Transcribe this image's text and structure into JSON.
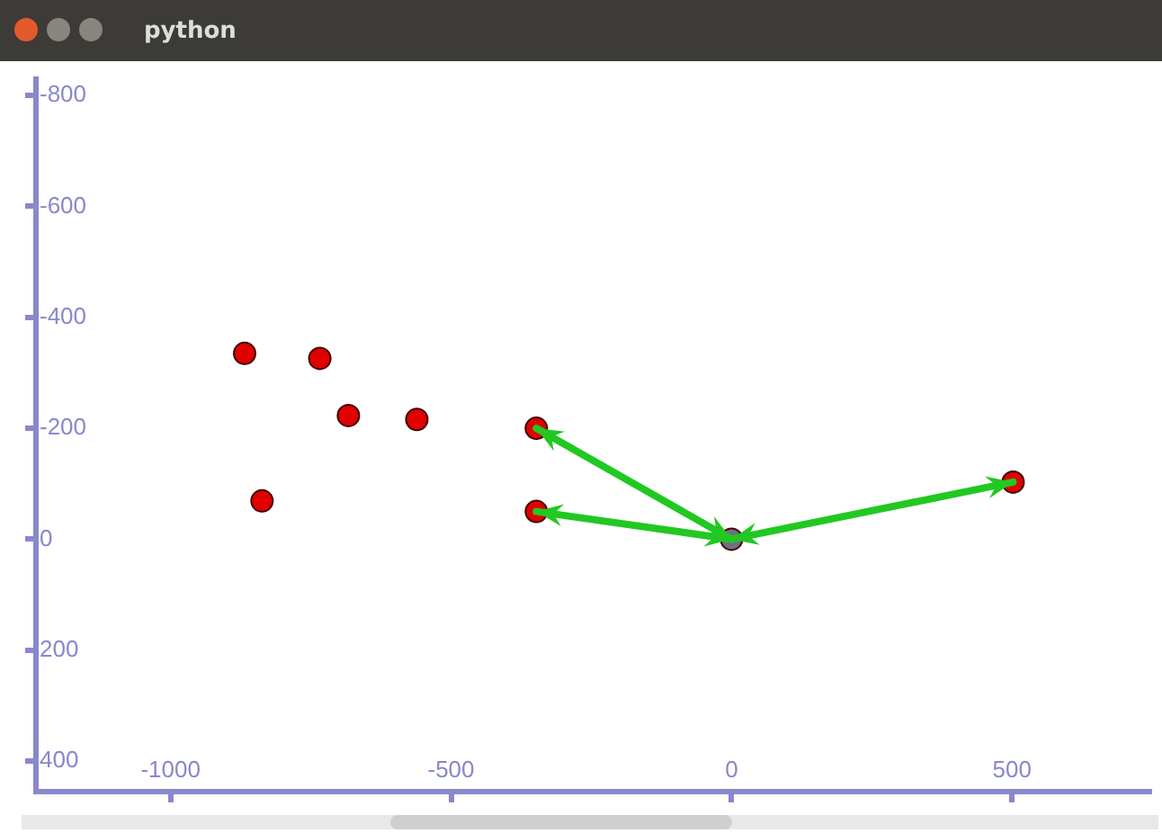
{
  "chart_data": {
    "type": "scatter",
    "title": "python",
    "xlim": [
      -1240,
      745
    ],
    "ylim": [
      455,
      -830
    ],
    "xticks": [
      -1000,
      -500,
      0,
      500
    ],
    "yticks": [
      -800,
      -600,
      -400,
      -200,
      0,
      200,
      400
    ],
    "grid": false,
    "marker": "circle",
    "legend": false,
    "series": [
      {
        "color": "#e00000",
        "x": [
          -868,
          -734,
          -683,
          -561,
          -348,
          -837,
          -348,
          502
        ],
        "values": [
          -335,
          -326,
          -223,
          -216,
          -200,
          -69,
          -50,
          -103
        ]
      },
      {
        "color": "#707080",
        "x": [
          0
        ],
        "values": [
          0
        ]
      }
    ]
  }
}
